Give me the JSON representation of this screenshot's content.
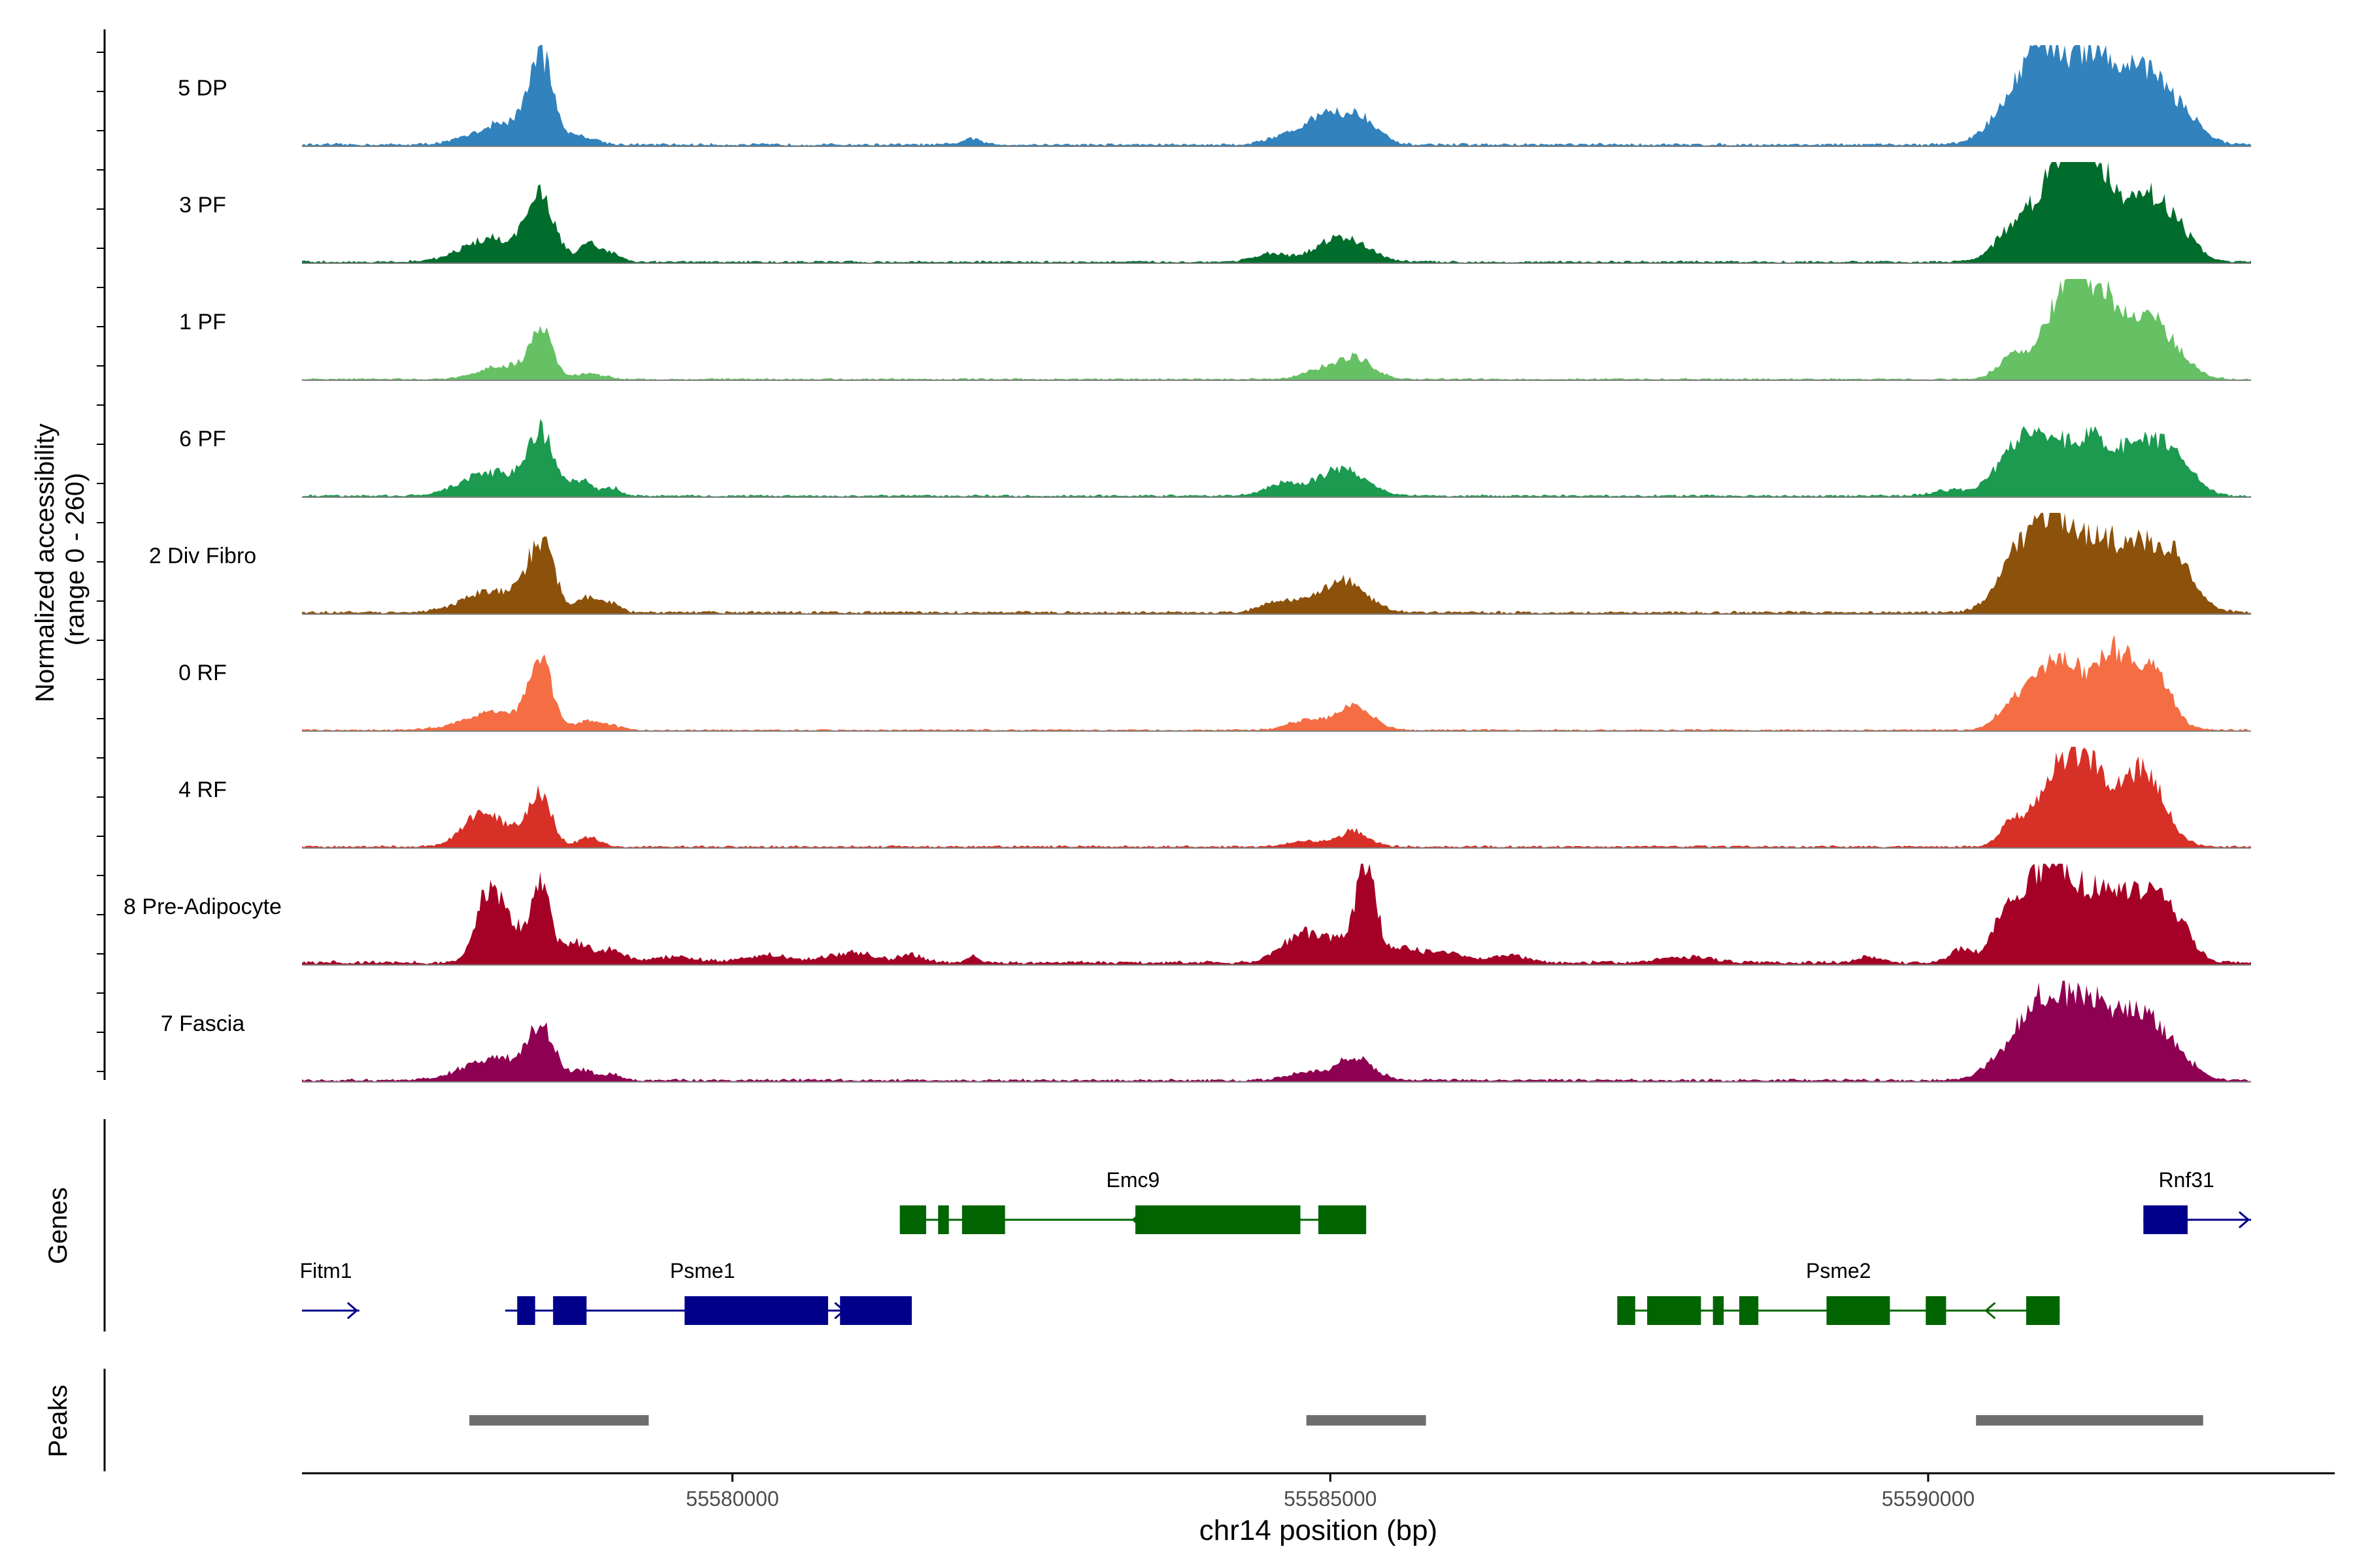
{
  "chart_data": {
    "type": "area",
    "title": "",
    "ylabel_line1": "Normalized accessibility",
    "ylabel_line2": "(range 0 - 260)",
    "y_range": [
      0,
      260
    ],
    "xlabel": "chr14 position (bp)",
    "x_range": [
      55576400,
      55593400
    ],
    "x_ticks": [
      55580000,
      55585000,
      55590000
    ],
    "x_tick_labels": [
      "55580000",
      "55585000",
      "55590000"
    ],
    "track_extent_bp": [
      55576400,
      55592700
    ],
    "series": [
      {
        "name": "5 DP",
        "color": "#3182bd",
        "baseline": 6,
        "peaks": [
          [
            55578400,
            210,
            100
          ],
          [
            55578100,
            55,
            250
          ],
          [
            55578750,
            20,
            120
          ],
          [
            55582000,
            15,
            80
          ],
          [
            55585000,
            85,
            180
          ],
          [
            55584600,
            20,
            140
          ],
          [
            55585300,
            50,
            120
          ],
          [
            55591100,
            200,
            300
          ],
          [
            55590900,
            100,
            150
          ],
          [
            55591800,
            190,
            250
          ],
          [
            55591400,
            80,
            120
          ],
          [
            55590600,
            30,
            150
          ],
          [
            55592200,
            25,
            120
          ]
        ]
      },
      {
        "name": "3 PF",
        "color": "#006d2c",
        "baseline": 5,
        "peaks": [
          [
            55578400,
            160,
            110
          ],
          [
            55578000,
            60,
            250
          ],
          [
            55578800,
            45,
            90
          ],
          [
            55579000,
            20,
            80
          ],
          [
            55585100,
            65,
            200
          ],
          [
            55584500,
            20,
            150
          ],
          [
            55591100,
            230,
            200
          ],
          [
            55590700,
            70,
            150
          ],
          [
            55591800,
            170,
            200
          ],
          [
            55591450,
            90,
            100
          ],
          [
            55591300,
            150,
            150
          ],
          [
            55592100,
            50,
            150
          ]
        ]
      },
      {
        "name": "1 PF",
        "color": "#66c164",
        "baseline": 4,
        "peaks": [
          [
            55578400,
            130,
            90
          ],
          [
            55578100,
            35,
            200
          ],
          [
            55578800,
            15,
            120
          ],
          [
            55585200,
            55,
            150
          ],
          [
            55584900,
            20,
            150
          ],
          [
            55591150,
            210,
            180
          ],
          [
            55590700,
            55,
            120
          ],
          [
            55591800,
            160,
            200
          ],
          [
            55591500,
            60,
            100
          ],
          [
            55591350,
            120,
            150
          ],
          [
            55592100,
            25,
            150
          ]
        ]
      },
      {
        "name": "6 PF",
        "color": "#1b9a50",
        "baseline": 5,
        "peaks": [
          [
            55578400,
            150,
            110
          ],
          [
            55578000,
            60,
            250
          ],
          [
            55578750,
            40,
            90
          ],
          [
            55579000,
            20,
            70
          ],
          [
            55585100,
            70,
            200
          ],
          [
            55584600,
            30,
            150
          ],
          [
            55591000,
            160,
            250
          ],
          [
            55590700,
            55,
            150
          ],
          [
            55591800,
            140,
            230
          ],
          [
            55591400,
            80,
            120
          ],
          [
            55592100,
            40,
            150
          ],
          [
            55590200,
            15,
            150
          ]
        ]
      },
      {
        "name": "2 Div Fibro",
        "color": "#8c510a",
        "baseline": 6,
        "peaks": [
          [
            55578400,
            170,
            110
          ],
          [
            55578000,
            55,
            250
          ],
          [
            55578800,
            40,
            90
          ],
          [
            55579000,
            20,
            70
          ],
          [
            55585100,
            80,
            200
          ],
          [
            55584600,
            30,
            150
          ],
          [
            55591050,
            250,
            250
          ],
          [
            55590700,
            60,
            150
          ],
          [
            55591800,
            170,
            250
          ],
          [
            55591450,
            70,
            120
          ],
          [
            55592100,
            60,
            150
          ]
        ]
      },
      {
        "name": "0 RF",
        "color": "#f46d43",
        "baseline": 4,
        "peaks": [
          [
            55578400,
            160,
            100
          ],
          [
            55578000,
            45,
            250
          ],
          [
            55578800,
            25,
            90
          ],
          [
            55579000,
            10,
            70
          ],
          [
            55585200,
            60,
            150
          ],
          [
            55584800,
            25,
            150
          ],
          [
            55591100,
            200,
            200
          ],
          [
            55590700,
            60,
            120
          ],
          [
            55591700,
            170,
            200
          ],
          [
            55591500,
            70,
            100
          ],
          [
            55591950,
            60,
            120
          ]
        ]
      },
      {
        "name": "4 RF",
        "color": "#d73027",
        "baseline": 5,
        "peaks": [
          [
            55578400,
            130,
            90
          ],
          [
            55577900,
            90,
            150
          ],
          [
            55578200,
            40,
            100
          ],
          [
            55578800,
            25,
            90
          ],
          [
            55585200,
            40,
            120
          ],
          [
            55584800,
            15,
            150
          ],
          [
            55591100,
            210,
            170
          ],
          [
            55590700,
            60,
            100
          ],
          [
            55591800,
            200,
            170
          ],
          [
            55591500,
            60,
            100
          ],
          [
            55591350,
            130,
            120
          ]
        ]
      },
      {
        "name": "8 Pre-Adipocyte",
        "color": "#a50026",
        "baseline": 8,
        "peaks": [
          [
            55577950,
            170,
            100
          ],
          [
            55578150,
            90,
            120
          ],
          [
            55578400,
            190,
            80
          ],
          [
            55578700,
            50,
            120
          ],
          [
            55579000,
            30,
            100
          ],
          [
            55579500,
            15,
            200
          ],
          [
            55580300,
            20,
            200
          ],
          [
            55581000,
            25,
            200
          ],
          [
            55581500,
            20,
            100
          ],
          [
            55582000,
            15,
            60
          ],
          [
            55585300,
            230,
            80
          ],
          [
            55585000,
            60,
            200
          ],
          [
            55584700,
            50,
            150
          ],
          [
            55585600,
            40,
            150
          ],
          [
            55586000,
            25,
            150
          ],
          [
            55586500,
            20,
            150
          ],
          [
            55588000,
            15,
            200
          ],
          [
            55589500,
            15,
            100
          ],
          [
            55590300,
            40,
            100
          ],
          [
            55590800,
            110,
            120
          ],
          [
            55591050,
            250,
            150
          ],
          [
            55591400,
            160,
            150
          ],
          [
            55591800,
            180,
            200
          ],
          [
            55592100,
            60,
            120
          ],
          [
            55590600,
            100,
            80
          ]
        ]
      },
      {
        "name": "7 Fascia",
        "color": "#8e0152",
        "baseline": 6,
        "peaks": [
          [
            55578400,
            130,
            110
          ],
          [
            55578000,
            55,
            250
          ],
          [
            55578750,
            25,
            90
          ],
          [
            55579000,
            15,
            80
          ],
          [
            55585200,
            60,
            150
          ],
          [
            55584800,
            20,
            150
          ],
          [
            55591050,
            220,
            220
          ],
          [
            55590700,
            55,
            200
          ],
          [
            55591750,
            170,
            230
          ],
          [
            55591400,
            100,
            130
          ],
          [
            55592100,
            30,
            150
          ]
        ]
      }
    ]
  },
  "genes_label": "Genes",
  "peaks_label": "Peaks",
  "genes": [
    {
      "name": "Emc9",
      "row": 1,
      "strand": "-",
      "color": "#006400",
      "start": 55581400,
      "end": 55585300,
      "label_pos": 55583350,
      "exons": [
        [
          55581400,
          55581620,
          "big"
        ],
        [
          55581720,
          55581810,
          "big"
        ],
        [
          55581920,
          55582280,
          "big"
        ],
        [
          55583370,
          55584750,
          "big"
        ],
        [
          55584900,
          55585300,
          "big"
        ]
      ]
    },
    {
      "name": "Rnf31",
      "row": 1,
      "strand": "+",
      "color": "#00008b",
      "start": 55591800,
      "end": 55592700,
      "label_pos": 55592160,
      "exons": [
        [
          55591800,
          55592170,
          "big"
        ]
      ]
    },
    {
      "name": "Fitm1",
      "row": 2,
      "strand": "+",
      "color": "#00008b",
      "start": 55576400,
      "end": 55576880,
      "label_pos": 55576600,
      "exons": []
    },
    {
      "name": "Psme1",
      "row": 2,
      "strand": "+",
      "color": "#00008b",
      "start": 55578100,
      "end": 55581500,
      "label_pos": 55579750,
      "exons": [
        [
          55578200,
          55578350,
          "big"
        ],
        [
          55578500,
          55578780,
          "big"
        ],
        [
          55579600,
          55580800,
          "big"
        ],
        [
          55580900,
          55581500,
          "big"
        ]
      ]
    },
    {
      "name": "Psme2",
      "row": 2,
      "strand": "-",
      "color": "#006400",
      "start": 55587400,
      "end": 55591100,
      "label_pos": 55589250,
      "exons": [
        [
          55587400,
          55587550,
          "big"
        ],
        [
          55587650,
          55588100,
          "big"
        ],
        [
          55588200,
          55588290,
          "big"
        ],
        [
          55588420,
          55588580,
          "big"
        ],
        [
          55589150,
          55589680,
          "big"
        ],
        [
          55589980,
          55590150,
          "big"
        ],
        [
          55590820,
          55591100,
          "big"
        ]
      ]
    }
  ],
  "peak_regions": [
    [
      55577800,
      55579300
    ],
    [
      55584800,
      55585800
    ],
    [
      55590400,
      55592300
    ]
  ]
}
